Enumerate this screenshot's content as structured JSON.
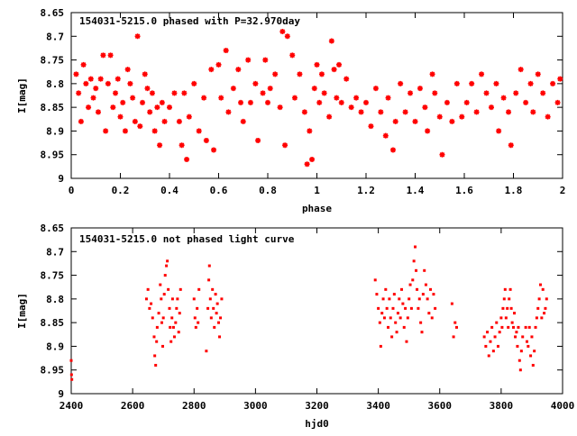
{
  "colors": {
    "points": "#ff0000",
    "axes": "#000000",
    "background": "#ffffff"
  },
  "chart_data": [
    {
      "type": "scatter",
      "title": "154031-5215.0 phased with P=32.970day",
      "xlabel": "phase",
      "ylabel": "I[mag]",
      "xlim": [
        0,
        2
      ],
      "ylim": [
        9,
        8.65
      ],
      "y_inverted": true,
      "grid": false,
      "marker": "star",
      "x_ticks": [
        0,
        0.2,
        0.4,
        0.6,
        0.8,
        1,
        1.2,
        1.4,
        1.6,
        1.8,
        2
      ],
      "x_tick_labels": [
        "0",
        "0.2",
        "0.4",
        "0.6",
        "0.8",
        "1",
        "1.2",
        "1.4",
        "1.6",
        "1.8",
        "2"
      ],
      "y_ticks": [
        8.65,
        8.7,
        8.75,
        8.8,
        8.85,
        8.9,
        8.95,
        9
      ],
      "y_tick_labels": [
        "8.65",
        "8.7",
        "8.75",
        "8.8",
        "8.85",
        "8.9",
        "8.95",
        "9"
      ],
      "points": [
        [
          0.02,
          8.78
        ],
        [
          0.03,
          8.82
        ],
        [
          0.04,
          8.88
        ],
        [
          0.05,
          8.76
        ],
        [
          0.06,
          8.8
        ],
        [
          0.07,
          8.85
        ],
        [
          0.08,
          8.79
        ],
        [
          0.09,
          8.83
        ],
        [
          0.1,
          8.81
        ],
        [
          0.11,
          8.86
        ],
        [
          0.12,
          8.79
        ],
        [
          0.13,
          8.74
        ],
        [
          0.14,
          8.9
        ],
        [
          0.15,
          8.8
        ],
        [
          0.16,
          8.74
        ],
        [
          0.17,
          8.85
        ],
        [
          0.18,
          8.82
        ],
        [
          0.19,
          8.79
        ],
        [
          0.2,
          8.87
        ],
        [
          0.21,
          8.84
        ],
        [
          0.22,
          8.9
        ],
        [
          0.23,
          8.77
        ],
        [
          0.24,
          8.8
        ],
        [
          0.25,
          8.83
        ],
        [
          0.26,
          8.88
        ],
        [
          0.27,
          8.7
        ],
        [
          0.28,
          8.89
        ],
        [
          0.29,
          8.84
        ],
        [
          0.3,
          8.78
        ],
        [
          0.31,
          8.81
        ],
        [
          0.32,
          8.86
        ],
        [
          0.33,
          8.82
        ],
        [
          0.34,
          8.9
        ],
        [
          0.35,
          8.85
        ],
        [
          0.36,
          8.93
        ],
        [
          0.37,
          8.84
        ],
        [
          0.38,
          8.88
        ],
        [
          0.4,
          8.85
        ],
        [
          0.42,
          8.82
        ],
        [
          0.44,
          8.88
        ],
        [
          0.45,
          8.93
        ],
        [
          0.46,
          8.82
        ],
        [
          0.47,
          8.96
        ],
        [
          0.48,
          8.87
        ],
        [
          0.5,
          8.8
        ],
        [
          0.52,
          8.9
        ],
        [
          0.54,
          8.83
        ],
        [
          0.55,
          8.92
        ],
        [
          0.57,
          8.77
        ],
        [
          0.58,
          8.94
        ],
        [
          0.6,
          8.76
        ],
        [
          0.61,
          8.83
        ],
        [
          0.63,
          8.73
        ],
        [
          0.64,
          8.86
        ],
        [
          0.66,
          8.81
        ],
        [
          0.68,
          8.77
        ],
        [
          0.69,
          8.84
        ],
        [
          0.7,
          8.88
        ],
        [
          0.72,
          8.75
        ],
        [
          0.73,
          8.84
        ],
        [
          0.75,
          8.8
        ],
        [
          0.76,
          8.92
        ],
        [
          0.78,
          8.82
        ],
        [
          0.79,
          8.75
        ],
        [
          0.8,
          8.84
        ],
        [
          0.81,
          8.81
        ],
        [
          0.83,
          8.78
        ],
        [
          0.85,
          8.85
        ],
        [
          0.86,
          8.69
        ],
        [
          0.87,
          8.93
        ],
        [
          0.88,
          8.7
        ],
        [
          0.9,
          8.74
        ],
        [
          0.91,
          8.83
        ],
        [
          0.93,
          8.78
        ],
        [
          0.95,
          8.86
        ],
        [
          0.96,
          8.97
        ],
        [
          0.97,
          8.9
        ],
        [
          0.98,
          8.96
        ],
        [
          0.99,
          8.81
        ],
        [
          1.0,
          8.76
        ],
        [
          1.01,
          8.84
        ],
        [
          1.02,
          8.78
        ],
        [
          1.03,
          8.82
        ],
        [
          1.05,
          8.87
        ],
        [
          1.06,
          8.71
        ],
        [
          1.07,
          8.77
        ],
        [
          1.08,
          8.83
        ],
        [
          1.09,
          8.76
        ],
        [
          1.1,
          8.84
        ],
        [
          1.12,
          8.79
        ],
        [
          1.14,
          8.85
        ],
        [
          1.16,
          8.83
        ],
        [
          1.18,
          8.86
        ],
        [
          1.2,
          8.84
        ],
        [
          1.22,
          8.89
        ],
        [
          1.24,
          8.81
        ],
        [
          1.26,
          8.86
        ],
        [
          1.28,
          8.91
        ],
        [
          1.29,
          8.83
        ],
        [
          1.31,
          8.94
        ],
        [
          1.32,
          8.88
        ],
        [
          1.34,
          8.8
        ],
        [
          1.36,
          8.86
        ],
        [
          1.38,
          8.82
        ],
        [
          1.4,
          8.88
        ],
        [
          1.42,
          8.81
        ],
        [
          1.44,
          8.85
        ],
        [
          1.45,
          8.9
        ],
        [
          1.47,
          8.78
        ],
        [
          1.48,
          8.82
        ],
        [
          1.5,
          8.87
        ],
        [
          1.51,
          8.95
        ],
        [
          1.53,
          8.84
        ],
        [
          1.55,
          8.88
        ],
        [
          1.57,
          8.8
        ],
        [
          1.59,
          8.87
        ],
        [
          1.61,
          8.84
        ],
        [
          1.63,
          8.8
        ],
        [
          1.65,
          8.86
        ],
        [
          1.67,
          8.78
        ],
        [
          1.69,
          8.82
        ],
        [
          1.71,
          8.85
        ],
        [
          1.73,
          8.8
        ],
        [
          1.74,
          8.9
        ],
        [
          1.76,
          8.83
        ],
        [
          1.78,
          8.86
        ],
        [
          1.79,
          8.93
        ],
        [
          1.81,
          8.82
        ],
        [
          1.83,
          8.77
        ],
        [
          1.85,
          8.84
        ],
        [
          1.87,
          8.8
        ],
        [
          1.88,
          8.86
        ],
        [
          1.9,
          8.78
        ],
        [
          1.92,
          8.82
        ],
        [
          1.94,
          8.87
        ],
        [
          1.96,
          8.8
        ],
        [
          1.98,
          8.84
        ],
        [
          1.99,
          8.79
        ]
      ]
    },
    {
      "type": "scatter",
      "title": "154031-5215.0 not phased light curve",
      "xlabel": "hjd0",
      "ylabel": "I[mag]",
      "xlim": [
        2400,
        4000
      ],
      "ylim": [
        9,
        8.65
      ],
      "y_inverted": true,
      "grid": false,
      "marker": "dot",
      "x_ticks": [
        2400,
        2600,
        2800,
        3000,
        3200,
        3400,
        3600,
        3800,
        4000
      ],
      "x_tick_labels": [
        "2400",
        "2600",
        "2800",
        "3000",
        "3200",
        "3400",
        "3600",
        "3800",
        "4000"
      ],
      "y_ticks": [
        8.65,
        8.7,
        8.75,
        8.8,
        8.85,
        8.9,
        8.95,
        9
      ],
      "y_tick_labels": [
        "8.65",
        "8.7",
        "8.75",
        "8.8",
        "8.85",
        "8.9",
        "8.95",
        "9"
      ],
      "points": [
        [
          2400,
          8.93
        ],
        [
          2401,
          8.96
        ],
        [
          2402,
          8.97
        ],
        [
          2645,
          8.8
        ],
        [
          2650,
          8.78
        ],
        [
          2655,
          8.82
        ],
        [
          2660,
          8.81
        ],
        [
          2665,
          8.84
        ],
        [
          2670,
          8.88
        ],
        [
          2672,
          8.92
        ],
        [
          2675,
          8.94
        ],
        [
          2678,
          8.89
        ],
        [
          2680,
          8.86
        ],
        [
          2685,
          8.83
        ],
        [
          2690,
          8.77
        ],
        [
          2693,
          8.8
        ],
        [
          2695,
          8.85
        ],
        [
          2698,
          8.9
        ],
        [
          2700,
          8.84
        ],
        [
          2703,
          8.79
        ],
        [
          2706,
          8.75
        ],
        [
          2710,
          8.73
        ],
        [
          2713,
          8.72
        ],
        [
          2716,
          8.78
        ],
        [
          2720,
          8.82
        ],
        [
          2722,
          8.86
        ],
        [
          2725,
          8.89
        ],
        [
          2728,
          8.84
        ],
        [
          2730,
          8.8
        ],
        [
          2733,
          8.86
        ],
        [
          2736,
          8.88
        ],
        [
          2740,
          8.85
        ],
        [
          2743,
          8.82
        ],
        [
          2746,
          8.8
        ],
        [
          2750,
          8.87
        ],
        [
          2753,
          8.83
        ],
        [
          2756,
          8.78
        ],
        [
          2800,
          8.8
        ],
        [
          2803,
          8.84
        ],
        [
          2806,
          8.86
        ],
        [
          2810,
          8.82
        ],
        [
          2813,
          8.85
        ],
        [
          2816,
          8.78
        ],
        [
          2840,
          8.91
        ],
        [
          2845,
          8.82
        ],
        [
          2848,
          8.76
        ],
        [
          2850,
          8.73
        ],
        [
          2853,
          8.8
        ],
        [
          2856,
          8.84
        ],
        [
          2860,
          8.78
        ],
        [
          2863,
          8.82
        ],
        [
          2866,
          8.86
        ],
        [
          2870,
          8.79
        ],
        [
          2873,
          8.83
        ],
        [
          2876,
          8.81
        ],
        [
          2880,
          8.85
        ],
        [
          2883,
          8.88
        ],
        [
          2886,
          8.84
        ],
        [
          2890,
          8.8
        ],
        [
          3390,
          8.76
        ],
        [
          3395,
          8.79
        ],
        [
          3400,
          8.82
        ],
        [
          3405,
          8.85
        ],
        [
          3408,
          8.9
        ],
        [
          3412,
          8.83
        ],
        [
          3416,
          8.8
        ],
        [
          3420,
          8.84
        ],
        [
          3424,
          8.78
        ],
        [
          3428,
          8.82
        ],
        [
          3432,
          8.86
        ],
        [
          3436,
          8.8
        ],
        [
          3440,
          8.84
        ],
        [
          3444,
          8.88
        ],
        [
          3448,
          8.82
        ],
        [
          3452,
          8.79
        ],
        [
          3456,
          8.85
        ],
        [
          3460,
          8.87
        ],
        [
          3464,
          8.83
        ],
        [
          3468,
          8.8
        ],
        [
          3472,
          8.84
        ],
        [
          3476,
          8.78
        ],
        [
          3480,
          8.81
        ],
        [
          3484,
          8.86
        ],
        [
          3488,
          8.82
        ],
        [
          3492,
          8.89
        ],
        [
          3496,
          8.84
        ],
        [
          3500,
          8.8
        ],
        [
          3504,
          8.77
        ],
        [
          3508,
          8.82
        ],
        [
          3512,
          8.76
        ],
        [
          3516,
          8.72
        ],
        [
          3520,
          8.69
        ],
        [
          3523,
          8.74
        ],
        [
          3526,
          8.78
        ],
        [
          3530,
          8.82
        ],
        [
          3534,
          8.8
        ],
        [
          3538,
          8.85
        ],
        [
          3542,
          8.87
        ],
        [
          3546,
          8.79
        ],
        [
          3550,
          8.74
        ],
        [
          3555,
          8.77
        ],
        [
          3560,
          8.8
        ],
        [
          3565,
          8.83
        ],
        [
          3570,
          8.78
        ],
        [
          3575,
          8.84
        ],
        [
          3580,
          8.79
        ],
        [
          3585,
          8.82
        ],
        [
          3640,
          8.81
        ],
        [
          3645,
          8.88
        ],
        [
          3650,
          8.85
        ],
        [
          3655,
          8.86
        ],
        [
          3745,
          8.88
        ],
        [
          3750,
          8.9
        ],
        [
          3755,
          8.87
        ],
        [
          3760,
          8.92
        ],
        [
          3765,
          8.89
        ],
        [
          3770,
          8.86
        ],
        [
          3775,
          8.91
        ],
        [
          3780,
          8.88
        ],
        [
          3785,
          8.85
        ],
        [
          3790,
          8.9
        ],
        [
          3795,
          8.87
        ],
        [
          3800,
          8.84
        ],
        [
          3803,
          8.86
        ],
        [
          3806,
          8.82
        ],
        [
          3810,
          8.8
        ],
        [
          3813,
          8.78
        ],
        [
          3816,
          8.84
        ],
        [
          3820,
          8.82
        ],
        [
          3823,
          8.86
        ],
        [
          3826,
          8.8
        ],
        [
          3830,
          8.78
        ],
        [
          3833,
          8.82
        ],
        [
          3836,
          8.85
        ],
        [
          3840,
          8.86
        ],
        [
          3843,
          8.83
        ],
        [
          3846,
          8.88
        ],
        [
          3850,
          8.87
        ],
        [
          3853,
          8.9
        ],
        [
          3856,
          8.86
        ],
        [
          3860,
          8.93
        ],
        [
          3863,
          8.95
        ],
        [
          3866,
          8.91
        ],
        [
          3870,
          8.88
        ],
        [
          3880,
          8.86
        ],
        [
          3884,
          8.89
        ],
        [
          3888,
          8.9
        ],
        [
          3892,
          8.86
        ],
        [
          3896,
          8.92
        ],
        [
          3900,
          8.88
        ],
        [
          3904,
          8.94
        ],
        [
          3908,
          8.91
        ],
        [
          3912,
          8.86
        ],
        [
          3916,
          8.84
        ],
        [
          3920,
          8.82
        ],
        [
          3924,
          8.8
        ],
        [
          3928,
          8.77
        ],
        [
          3932,
          8.84
        ],
        [
          3936,
          8.78
        ],
        [
          3940,
          8.83
        ],
        [
          3944,
          8.82
        ],
        [
          3948,
          8.8
        ]
      ]
    }
  ]
}
